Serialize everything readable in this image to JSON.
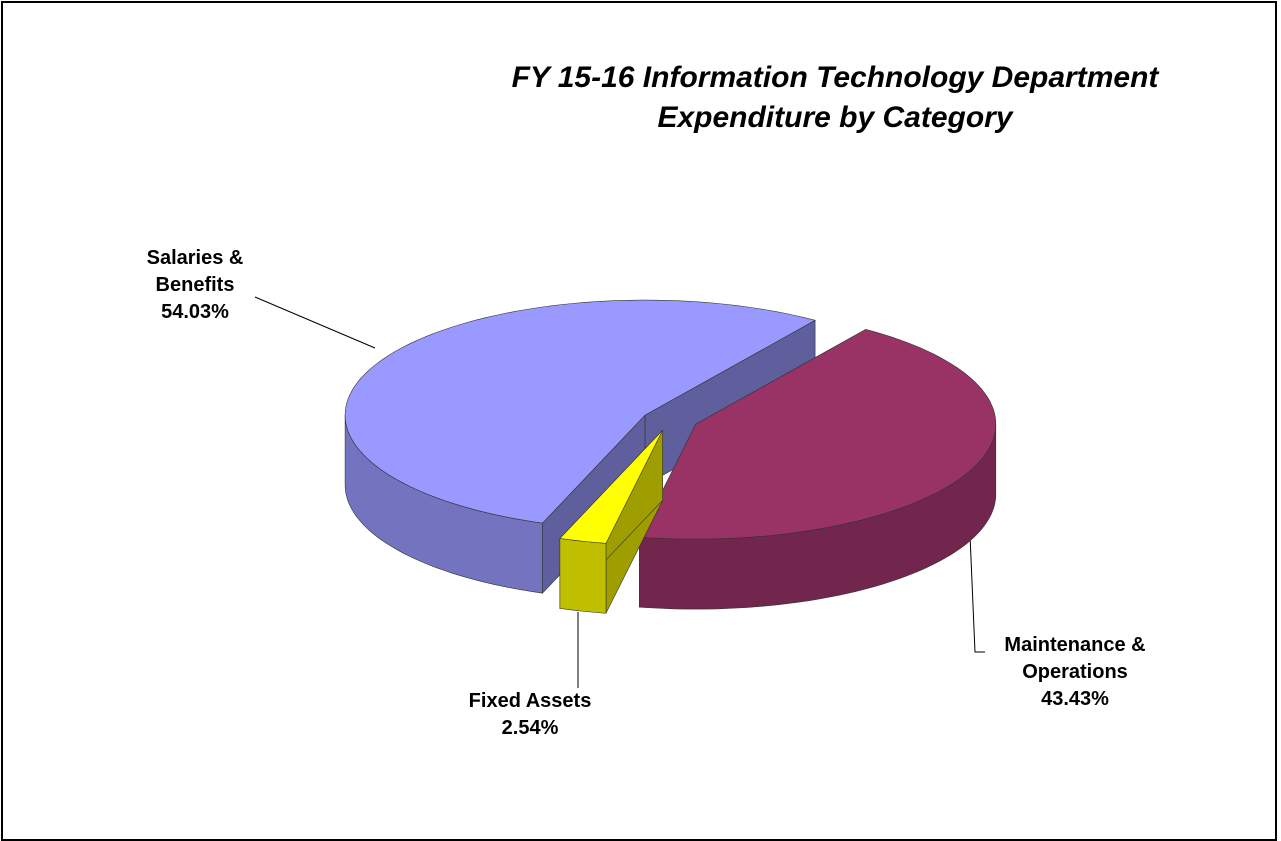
{
  "chart_data": {
    "type": "pie",
    "title": "FY 15-16 Information Technology Department Expenditure by Category",
    "categories": [
      "Salaries & Benefits",
      "Maintenance & Operations",
      "Fixed Assets"
    ],
    "values": [
      54.03,
      43.43,
      2.54
    ],
    "value_labels": [
      "54.03%",
      "43.43%",
      "2.54%"
    ],
    "colors": [
      "#9999ff",
      "#993366",
      "#ffff00"
    ]
  }
}
